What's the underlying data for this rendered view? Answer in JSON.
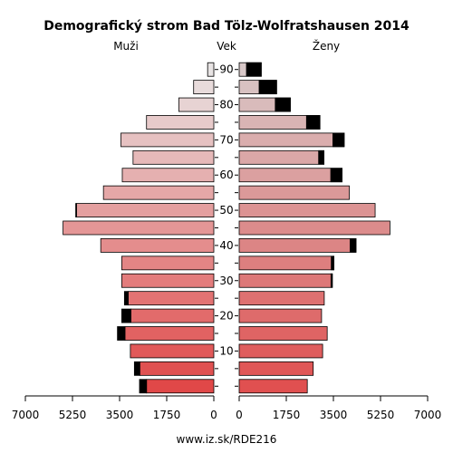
{
  "chart_data": {
    "type": "bar",
    "title": "Demografický strom Bad Tölz-Wolfratshausen 2014",
    "left_label": "Muži",
    "center_label": "Vek",
    "right_label": "Ženy",
    "footer": "www.iz.sk/RDE216",
    "x_ticks_left": [
      "7000",
      "5250",
      "3500",
      "1750",
      "0"
    ],
    "x_ticks_right": [
      "0",
      "1750",
      "3500",
      "5250",
      "7000"
    ],
    "x_tick_values": [
      0,
      1750,
      3500,
      5250,
      7000
    ],
    "xlim": [
      0,
      7000
    ],
    "age_tick_labels": [
      "90",
      "80",
      "70",
      "60",
      "50",
      "40",
      "30",
      "20",
      "10"
    ],
    "age_tick_rows": [
      18,
      16,
      14,
      12,
      10,
      8,
      6,
      4,
      2
    ],
    "age_groups": [
      "0-4",
      "5-9",
      "10-14",
      "15-19",
      "20-24",
      "25-29",
      "30-34",
      "35-39",
      "40-44",
      "45-49",
      "50-54",
      "55-59",
      "60-64",
      "65-69",
      "70-74",
      "75-79",
      "80-84",
      "85-89",
      "90+"
    ],
    "series": [
      {
        "name": "Muži",
        "values": [
          2500,
          2750,
          3100,
          3300,
          3080,
          3180,
          3420,
          3420,
          4200,
          5600,
          5100,
          4100,
          3400,
          3000,
          3450,
          2500,
          1300,
          750,
          230
        ],
        "excess": [
          260,
          200,
          0,
          280,
          340,
          140,
          0,
          0,
          0,
          0,
          30,
          0,
          0,
          0,
          0,
          0,
          0,
          0,
          0
        ]
      },
      {
        "name": "Ženy",
        "values": [
          2530,
          2750,
          3100,
          3270,
          3060,
          3160,
          3460,
          3520,
          4340,
          5600,
          5050,
          4090,
          3820,
          3150,
          3900,
          3000,
          1900,
          1390,
          820
        ],
        "excess": [
          0,
          0,
          0,
          0,
          0,
          0,
          0,
          0,
          0,
          0,
          0,
          0,
          0,
          0,
          0,
          0,
          0,
          0,
          0
        ],
        "black_tail": [
          0,
          0,
          0,
          0,
          0,
          0,
          50,
          100,
          220,
          0,
          0,
          0,
          420,
          200,
          420,
          500,
          560,
          650,
          550
        ]
      }
    ],
    "colors": {
      "men_young": "#e04848",
      "men_old": "#e8e4e4",
      "women_young": "#e05050",
      "women_old": "#d8c8c8",
      "excess": "#000000",
      "stroke": "#000000"
    }
  }
}
